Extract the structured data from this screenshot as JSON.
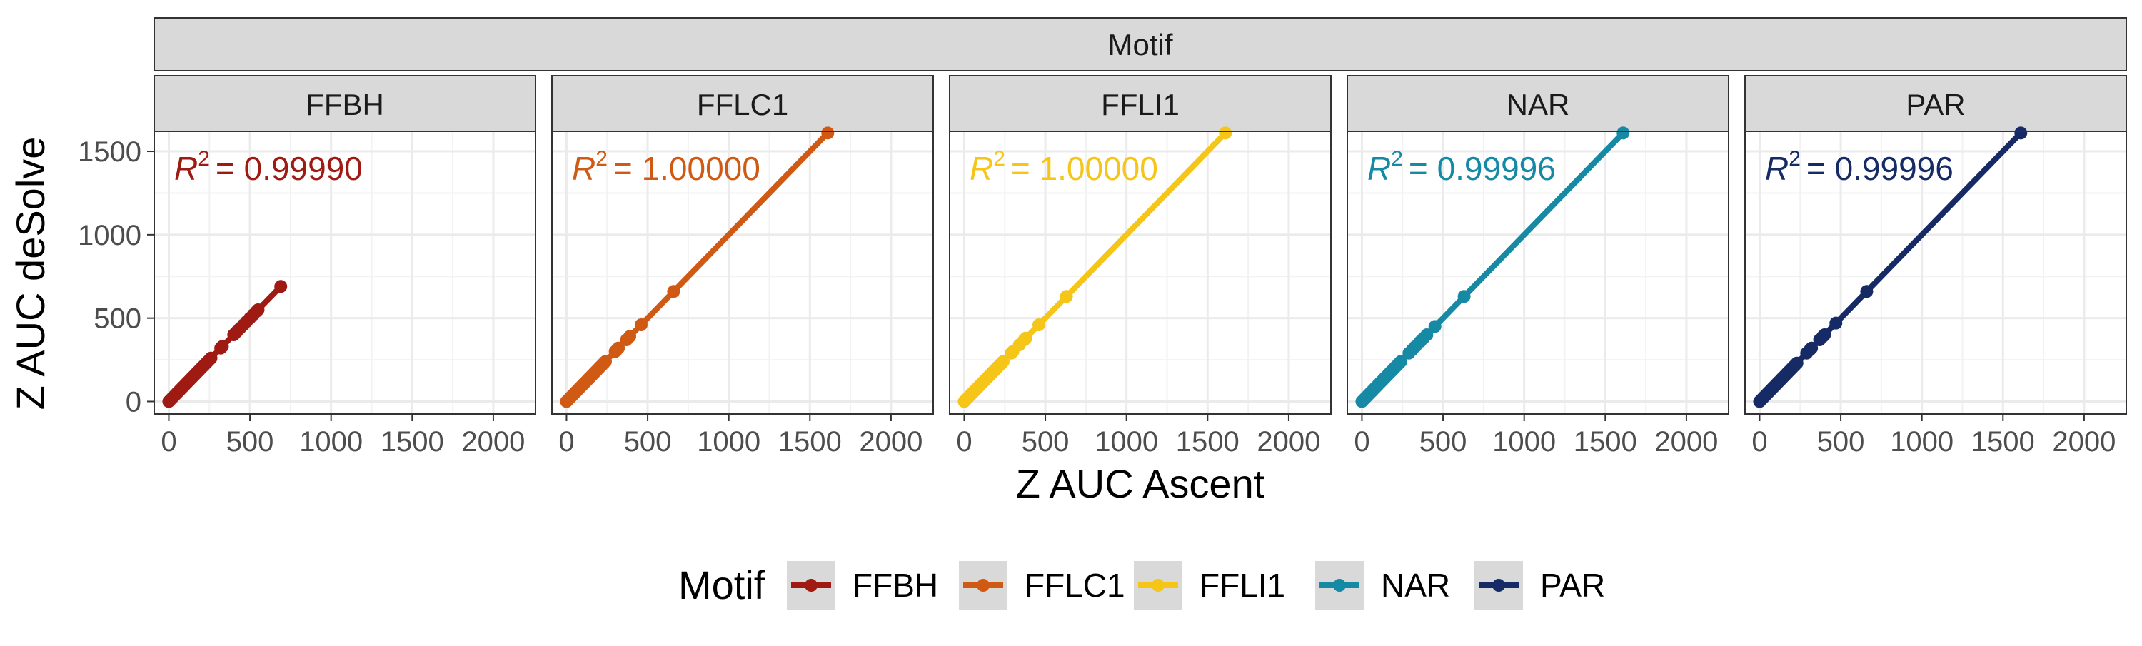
{
  "strip_top": "Motif",
  "xlabel": "Z AUC Ascent",
  "ylabel": "Z AUC deSolve",
  "legend_title": "Motif",
  "x_ticks": [
    "0",
    "500",
    "1000",
    "1500",
    "2000"
  ],
  "y_ticks": [
    "0",
    "500",
    "1000",
    "1500"
  ],
  "chart_data": {
    "type": "line",
    "markers": true,
    "facets": [
      "FFBH",
      "FFLC1",
      "FFLI1",
      "NAR",
      "PAR"
    ],
    "xlabel": "Z AUC Ascent",
    "ylabel": "Z AUC deSolve",
    "xlim": [
      -90,
      2260
    ],
    "ylim": [
      -75,
      1620
    ],
    "x_ticks": [
      0,
      500,
      1000,
      1500,
      2000
    ],
    "y_ticks": [
      0,
      500,
      1000,
      1500
    ],
    "grid": true,
    "legend_position": "bottom",
    "series": [
      {
        "name": "FFBH",
        "color": "#9E1A13",
        "r2_label": "= 0.99990",
        "x": [
          0,
          10,
          20,
          30,
          40,
          50,
          60,
          70,
          80,
          90,
          100,
          110,
          120,
          130,
          140,
          150,
          160,
          170,
          180,
          190,
          200,
          210,
          220,
          230,
          240,
          250,
          260,
          320,
          330,
          400,
          410,
          420,
          440,
          460,
          480,
          500,
          520,
          540,
          550,
          690
        ],
        "y": [
          0,
          10,
          20,
          30,
          40,
          50,
          60,
          70,
          80,
          90,
          100,
          110,
          120,
          130,
          140,
          150,
          160,
          170,
          180,
          190,
          200,
          210,
          220,
          230,
          240,
          250,
          260,
          320,
          330,
          400,
          410,
          420,
          440,
          460,
          480,
          500,
          520,
          540,
          550,
          690
        ]
      },
      {
        "name": "FFLC1",
        "color": "#D05A14",
        "r2_label": "= 1.00000",
        "x": [
          0,
          10,
          20,
          30,
          40,
          50,
          60,
          70,
          80,
          90,
          100,
          110,
          120,
          130,
          140,
          150,
          160,
          170,
          180,
          190,
          200,
          210,
          220,
          230,
          240,
          300,
          310,
          320,
          370,
          390,
          460,
          660,
          1610
        ],
        "y": [
          0,
          10,
          20,
          30,
          40,
          50,
          60,
          70,
          80,
          90,
          100,
          110,
          120,
          130,
          140,
          150,
          160,
          170,
          180,
          190,
          200,
          210,
          220,
          230,
          240,
          300,
          310,
          320,
          370,
          390,
          460,
          660,
          1610
        ]
      },
      {
        "name": "FFLI1",
        "color": "#F5C518",
        "r2_label": "= 1.00000",
        "x": [
          0,
          10,
          20,
          30,
          40,
          50,
          60,
          70,
          80,
          90,
          100,
          110,
          120,
          130,
          140,
          150,
          160,
          170,
          180,
          190,
          200,
          210,
          220,
          230,
          240,
          290,
          300,
          340,
          370,
          380,
          460,
          630,
          1610
        ],
        "y": [
          0,
          10,
          20,
          30,
          40,
          50,
          60,
          70,
          80,
          90,
          100,
          110,
          120,
          130,
          140,
          150,
          160,
          170,
          180,
          190,
          200,
          210,
          220,
          230,
          240,
          290,
          300,
          340,
          370,
          380,
          460,
          630,
          1610
        ]
      },
      {
        "name": "NAR",
        "color": "#1689A4",
        "r2_label": "= 0.99996",
        "x": [
          0,
          10,
          20,
          30,
          40,
          50,
          60,
          70,
          80,
          90,
          100,
          110,
          120,
          130,
          140,
          150,
          160,
          170,
          180,
          190,
          200,
          210,
          220,
          230,
          240,
          290,
          310,
          330,
          360,
          380,
          400,
          450,
          630,
          1610
        ],
        "y": [
          0,
          10,
          20,
          30,
          40,
          50,
          60,
          70,
          80,
          90,
          100,
          110,
          120,
          130,
          140,
          150,
          160,
          170,
          180,
          190,
          200,
          210,
          220,
          230,
          240,
          290,
          310,
          330,
          360,
          380,
          400,
          450,
          630,
          1610
        ]
      },
      {
        "name": "PAR",
        "color": "#162B66",
        "r2_label": "= 0.99996",
        "x": [
          0,
          10,
          20,
          30,
          40,
          50,
          60,
          70,
          80,
          90,
          100,
          110,
          120,
          130,
          140,
          150,
          160,
          170,
          180,
          190,
          200,
          210,
          220,
          230,
          290,
          310,
          320,
          370,
          390,
          400,
          470,
          660,
          1610
        ],
        "y": [
          0,
          10,
          20,
          30,
          40,
          50,
          60,
          70,
          80,
          90,
          100,
          110,
          120,
          130,
          140,
          150,
          160,
          170,
          180,
          190,
          200,
          210,
          220,
          230,
          290,
          310,
          320,
          370,
          390,
          400,
          470,
          660,
          1610
        ]
      }
    ]
  }
}
